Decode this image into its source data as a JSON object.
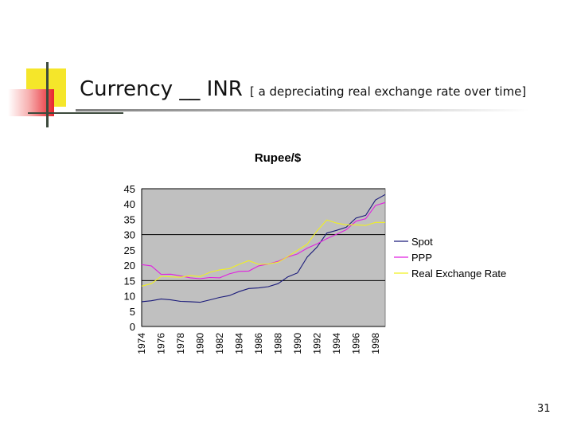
{
  "slide": {
    "title_main": "Currency __ INR",
    "title_sub": "[ a depreciating real exchange rate over time]",
    "page_number": "31"
  },
  "colors": {
    "accent_yellow": "#f5e62a",
    "accent_red": "#e8262e",
    "dark_bar": "#3c4a3c",
    "plot_bg": "#c0c0c0"
  },
  "chart_data": {
    "type": "line",
    "title": "Rupee/$",
    "xlabel": "",
    "ylabel": "",
    "ylim": [
      0,
      45
    ],
    "yticks": [
      0,
      5,
      10,
      15,
      20,
      25,
      30,
      35,
      40,
      45
    ],
    "grid": "major-y (every 15)",
    "legend": "right",
    "x": [
      1974,
      1975,
      1976,
      1977,
      1978,
      1979,
      1980,
      1981,
      1982,
      1983,
      1984,
      1985,
      1986,
      1987,
      1988,
      1989,
      1990,
      1991,
      1992,
      1993,
      1994,
      1995,
      1996,
      1997,
      1998,
      1999
    ],
    "xtick_labels": [
      "1974",
      "1976",
      "1978",
      "1980",
      "1982",
      "1984",
      "1986",
      "1988",
      "1990",
      "1992",
      "1994",
      "1996",
      "1998"
    ],
    "series": [
      {
        "name": "Spot",
        "color": "#1a1a7a",
        "values": [
          8.1,
          8.4,
          9.0,
          8.7,
          8.2,
          8.1,
          7.9,
          8.7,
          9.5,
          10.1,
          11.4,
          12.4,
          12.6,
          13.0,
          14.0,
          16.2,
          17.5,
          22.7,
          25.9,
          30.5,
          31.4,
          32.4,
          35.4,
          36.3,
          41.3,
          43.1
        ]
      },
      {
        "name": "PPP",
        "color": "#e020e0",
        "values": [
          20.2,
          19.8,
          17.0,
          17.1,
          16.5,
          15.9,
          15.6,
          16.0,
          15.9,
          17.2,
          18.0,
          18.1,
          19.8,
          20.4,
          21.3,
          22.7,
          23.7,
          25.6,
          27.0,
          28.7,
          30.1,
          31.6,
          34.4,
          35.2,
          39.5,
          40.5
        ]
      },
      {
        "name": "Real Exchange Rate",
        "color": "#f0f020",
        "values": [
          13.2,
          14.0,
          16.4,
          16.2,
          16.1,
          16.6,
          16.3,
          17.7,
          18.5,
          18.9,
          20.3,
          21.5,
          20.3,
          20.4,
          21.0,
          22.8,
          24.9,
          26.9,
          31.2,
          34.8,
          33.8,
          33.2,
          33.2,
          33.0,
          34.0,
          34.0
        ]
      }
    ]
  }
}
